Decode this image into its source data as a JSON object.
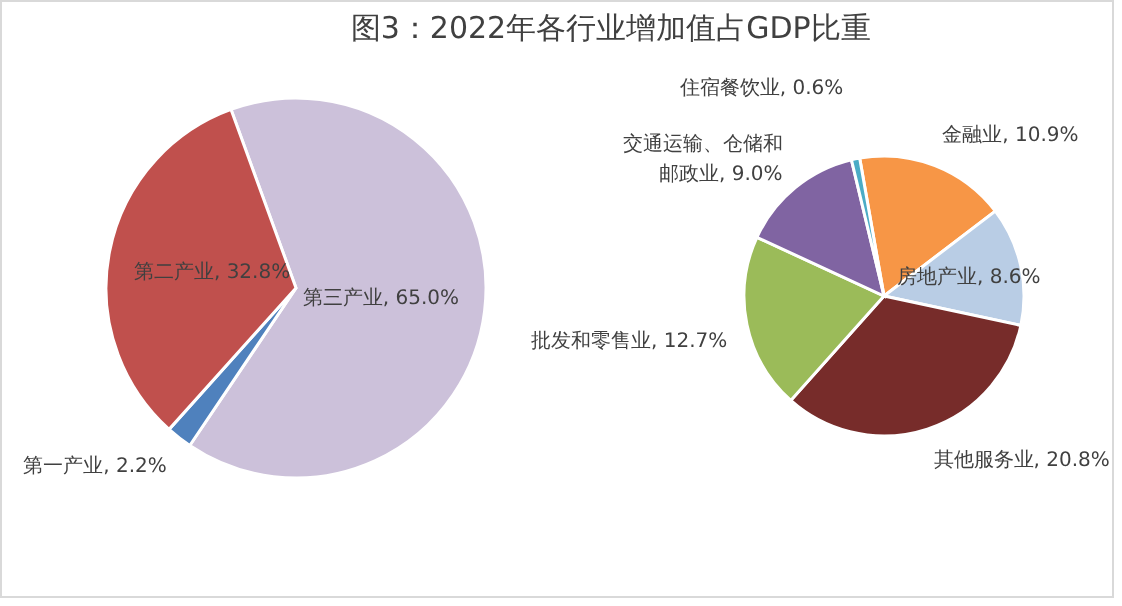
{
  "chart_data": [
    {
      "type": "pie",
      "title": "图3：2022年各行业增加值占GDP比重",
      "categories": [
        "第三产业",
        "第一产业",
        "第二产业"
      ],
      "values": [
        65.0,
        2.2,
        32.8
      ],
      "value_labels": [
        "65.0%",
        "2.2%",
        "32.8%"
      ],
      "colors": [
        "#ccc1da",
        "#4f81bd",
        "#c0504d"
      ]
    },
    {
      "type": "pie",
      "categories": [
        "金融业",
        "房地产业",
        "其他服务业",
        "批发和零售业",
        "交通运输、仓储和邮政业",
        "住宿餐饮业"
      ],
      "values": [
        10.9,
        8.6,
        20.8,
        12.7,
        9.0,
        0.6
      ],
      "value_labels": [
        "10.9%",
        "8.6%",
        "20.8%",
        "12.7%",
        "9.0%",
        "0.6%"
      ],
      "colors": [
        "#f79646",
        "#b9cde5",
        "#772c2a",
        "#9bbb59",
        "#8064a2",
        "#4bacc6"
      ]
    }
  ]
}
